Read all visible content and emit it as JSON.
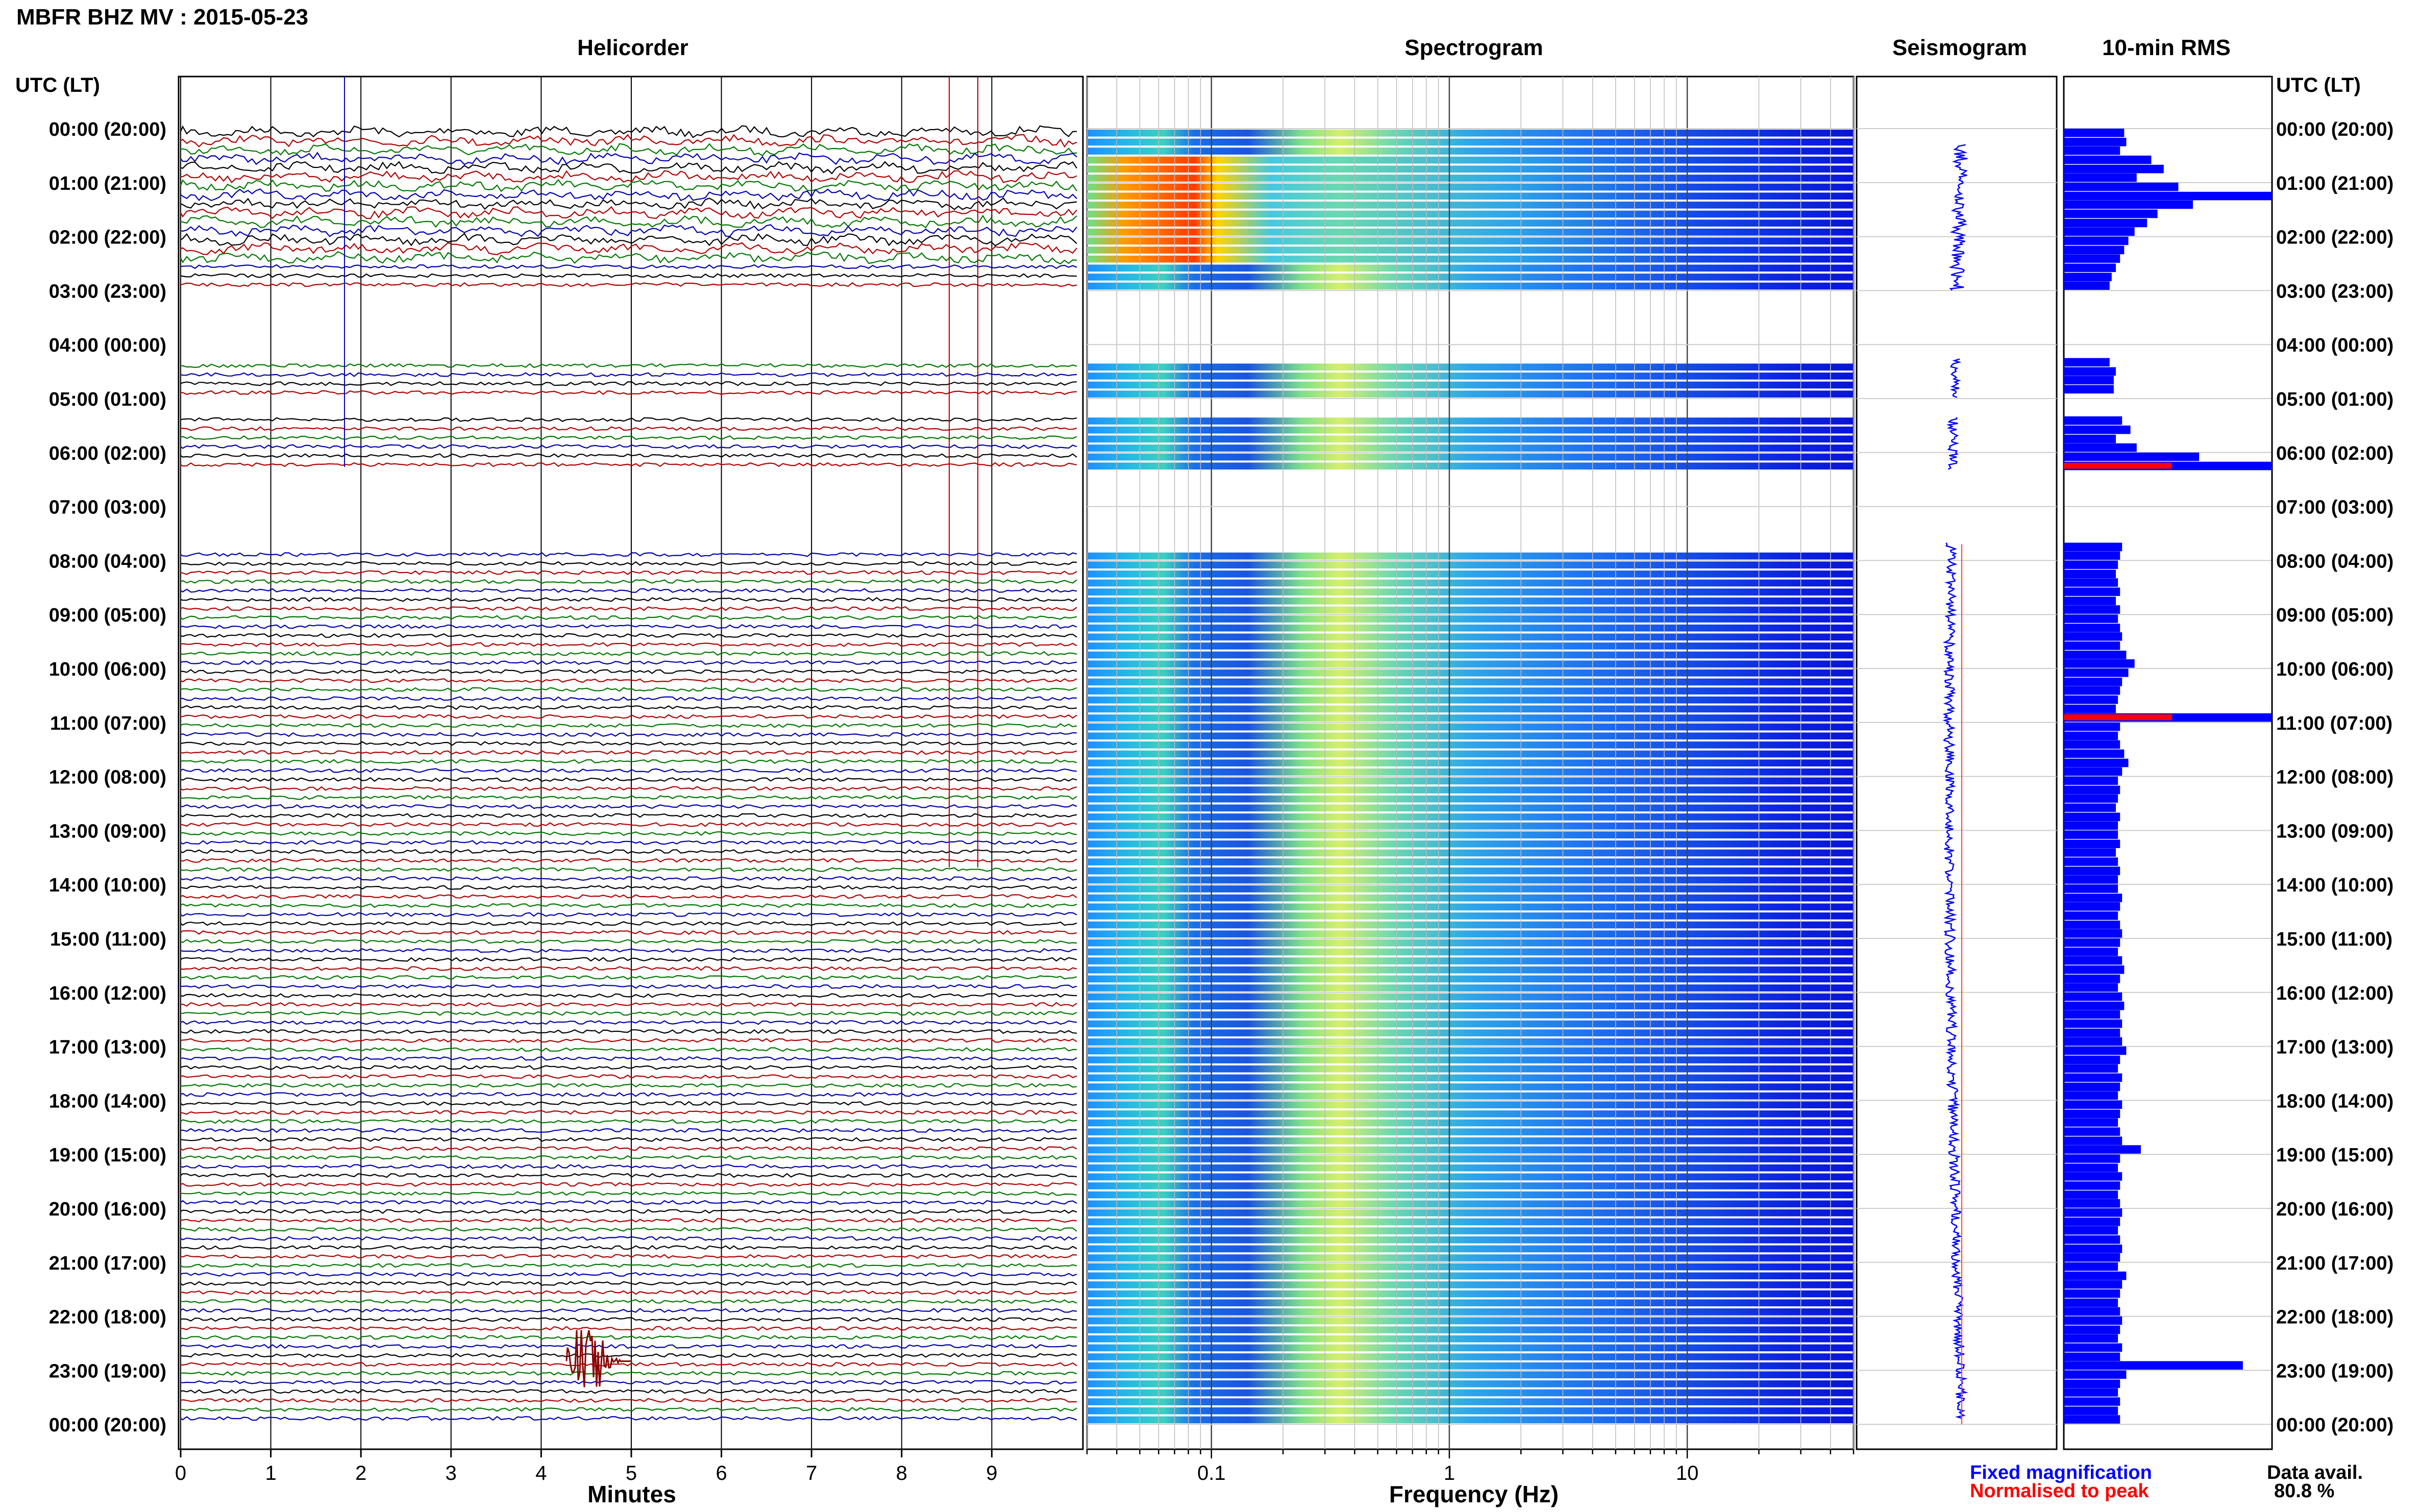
{
  "header": {
    "title": "MBFR BHZ MV : 2015-05-23"
  },
  "panels": {
    "helicorder": "Helicorder",
    "spectrogram": "Spectrogram",
    "seismogram": "Seismogram",
    "rms": "10-min RMS"
  },
  "time_axis": {
    "label": "UTC (LT)",
    "ticks": [
      "00:00 (20:00)",
      "01:00 (21:00)",
      "02:00 (22:00)",
      "03:00 (23:00)",
      "04:00 (00:00)",
      "05:00 (01:00)",
      "06:00 (02:00)",
      "07:00 (03:00)",
      "08:00 (04:00)",
      "09:00 (05:00)",
      "10:00 (06:00)",
      "11:00 (07:00)",
      "12:00 (08:00)",
      "13:00 (09:00)",
      "14:00 (10:00)",
      "15:00 (11:00)",
      "16:00 (12:00)",
      "17:00 (13:00)",
      "18:00 (14:00)",
      "19:00 (15:00)",
      "20:00 (16:00)",
      "21:00 (17:00)",
      "22:00 (18:00)",
      "23:00 (19:00)",
      "00:00 (20:00)"
    ]
  },
  "helicorder_axis": {
    "label": "Minutes",
    "ticks": [
      "0",
      "1",
      "2",
      "3",
      "4",
      "5",
      "6",
      "7",
      "8",
      "9"
    ]
  },
  "spectrogram_axis": {
    "label": "Frequency (Hz)",
    "ticks": [
      "0.1",
      "1",
      "10"
    ]
  },
  "legend": {
    "fixed": "Fixed magnification",
    "normalised": "Normalised to peak"
  },
  "data_avail": {
    "label": "Data avail.",
    "value": "80.8 %"
  },
  "colors": {
    "trace_colors": [
      "#000000",
      "#b00000",
      "#007700",
      "#0000b0"
    ],
    "rms_fill": "#0000ff",
    "rms_peak": "#ff0000",
    "fixed": "#0000ff",
    "normalised": "#ff0000"
  },
  "chart_data": {
    "type": "bar",
    "title": "10-min RMS",
    "x_unit": "hour UTC",
    "gaps_hours": [
      [
        3.0,
        4.0
      ],
      [
        4.0,
        4.25
      ],
      [
        5.0,
        5.33
      ],
      [
        6.33,
        7.67
      ]
    ],
    "rms": [
      {
        "hour": 0.0,
        "value": 0.29
      },
      {
        "hour": 0.17,
        "value": 0.3
      },
      {
        "hour": 0.33,
        "value": 0.27
      },
      {
        "hour": 0.5,
        "value": 0.42
      },
      {
        "hour": 0.67,
        "value": 0.48
      },
      {
        "hour": 0.83,
        "value": 0.35
      },
      {
        "hour": 1.0,
        "value": 0.55
      },
      {
        "hour": 1.17,
        "value": 1.0
      },
      {
        "hour": 1.33,
        "value": 0.62
      },
      {
        "hour": 1.5,
        "value": 0.45
      },
      {
        "hour": 1.67,
        "value": 0.4
      },
      {
        "hour": 1.83,
        "value": 0.34
      },
      {
        "hour": 2.0,
        "value": 0.31
      },
      {
        "hour": 2.17,
        "value": 0.29
      },
      {
        "hour": 2.33,
        "value": 0.27
      },
      {
        "hour": 2.5,
        "value": 0.25
      },
      {
        "hour": 2.67,
        "value": 0.23
      },
      {
        "hour": 2.83,
        "value": 0.22
      },
      {
        "hour": 4.25,
        "value": 0.22
      },
      {
        "hour": 4.42,
        "value": 0.25
      },
      {
        "hour": 4.58,
        "value": 0.24
      },
      {
        "hour": 4.75,
        "value": 0.24
      },
      {
        "hour": 5.33,
        "value": 0.28
      },
      {
        "hour": 5.5,
        "value": 0.32
      },
      {
        "hour": 5.67,
        "value": 0.25
      },
      {
        "hour": 5.83,
        "value": 0.35
      },
      {
        "hour": 6.0,
        "value": 0.65
      },
      {
        "hour": 6.17,
        "value": 1.0,
        "peak": true
      },
      {
        "hour": 7.67,
        "value": 0.28
      },
      {
        "hour": 7.83,
        "value": 0.27
      },
      {
        "hour": 8.0,
        "value": 0.26
      },
      {
        "hour": 8.17,
        "value": 0.25
      },
      {
        "hour": 8.33,
        "value": 0.26
      },
      {
        "hour": 8.5,
        "value": 0.27
      },
      {
        "hour": 8.67,
        "value": 0.25
      },
      {
        "hour": 8.83,
        "value": 0.27
      },
      {
        "hour": 9.0,
        "value": 0.26
      },
      {
        "hour": 9.17,
        "value": 0.27
      },
      {
        "hour": 9.33,
        "value": 0.28
      },
      {
        "hour": 9.5,
        "value": 0.27
      },
      {
        "hour": 9.67,
        "value": 0.3
      },
      {
        "hour": 9.83,
        "value": 0.34
      },
      {
        "hour": 10.0,
        "value": 0.31
      },
      {
        "hour": 10.17,
        "value": 0.28
      },
      {
        "hour": 10.33,
        "value": 0.27
      },
      {
        "hour": 10.5,
        "value": 0.26
      },
      {
        "hour": 10.67,
        "value": 0.25
      },
      {
        "hour": 10.83,
        "value": 1.0,
        "peak": true
      },
      {
        "hour": 11.0,
        "value": 0.27
      },
      {
        "hour": 11.17,
        "value": 0.26
      },
      {
        "hour": 11.33,
        "value": 0.27
      },
      {
        "hour": 11.5,
        "value": 0.29
      },
      {
        "hour": 11.67,
        "value": 0.31
      },
      {
        "hour": 11.83,
        "value": 0.28
      },
      {
        "hour": 12.0,
        "value": 0.26
      },
      {
        "hour": 12.17,
        "value": 0.27
      },
      {
        "hour": 12.33,
        "value": 0.26
      },
      {
        "hour": 12.5,
        "value": 0.25
      },
      {
        "hour": 12.67,
        "value": 0.27
      },
      {
        "hour": 12.83,
        "value": 0.26
      },
      {
        "hour": 13.0,
        "value": 0.26
      },
      {
        "hour": 13.17,
        "value": 0.27
      },
      {
        "hour": 13.33,
        "value": 0.25
      },
      {
        "hour": 13.5,
        "value": 0.26
      },
      {
        "hour": 13.67,
        "value": 0.27
      },
      {
        "hour": 13.83,
        "value": 0.26
      },
      {
        "hour": 14.0,
        "value": 0.26
      },
      {
        "hour": 14.17,
        "value": 0.28
      },
      {
        "hour": 14.33,
        "value": 0.27
      },
      {
        "hour": 14.5,
        "value": 0.26
      },
      {
        "hour": 14.67,
        "value": 0.27
      },
      {
        "hour": 14.83,
        "value": 0.28
      },
      {
        "hour": 15.0,
        "value": 0.27
      },
      {
        "hour": 15.17,
        "value": 0.26
      },
      {
        "hour": 15.33,
        "value": 0.28
      },
      {
        "hour": 15.5,
        "value": 0.29
      },
      {
        "hour": 15.67,
        "value": 0.27
      },
      {
        "hour": 15.83,
        "value": 0.26
      },
      {
        "hour": 16.0,
        "value": 0.28
      },
      {
        "hour": 16.17,
        "value": 0.29
      },
      {
        "hour": 16.33,
        "value": 0.27
      },
      {
        "hour": 16.5,
        "value": 0.28
      },
      {
        "hour": 16.67,
        "value": 0.27
      },
      {
        "hour": 16.83,
        "value": 0.28
      },
      {
        "hour": 17.0,
        "value": 0.3
      },
      {
        "hour": 17.17,
        "value": 0.27
      },
      {
        "hour": 17.33,
        "value": 0.26
      },
      {
        "hour": 17.5,
        "value": 0.28
      },
      {
        "hour": 17.67,
        "value": 0.27
      },
      {
        "hour": 17.83,
        "value": 0.26
      },
      {
        "hour": 18.0,
        "value": 0.28
      },
      {
        "hour": 18.17,
        "value": 0.27
      },
      {
        "hour": 18.33,
        "value": 0.26
      },
      {
        "hour": 18.5,
        "value": 0.27
      },
      {
        "hour": 18.67,
        "value": 0.28
      },
      {
        "hour": 18.83,
        "value": 0.37
      },
      {
        "hour": 19.0,
        "value": 0.27
      },
      {
        "hour": 19.17,
        "value": 0.26
      },
      {
        "hour": 19.33,
        "value": 0.28
      },
      {
        "hour": 19.5,
        "value": 0.27
      },
      {
        "hour": 19.67,
        "value": 0.26
      },
      {
        "hour": 19.83,
        "value": 0.27
      },
      {
        "hour": 20.0,
        "value": 0.28
      },
      {
        "hour": 20.17,
        "value": 0.27
      },
      {
        "hour": 20.33,
        "value": 0.26
      },
      {
        "hour": 20.5,
        "value": 0.27
      },
      {
        "hour": 20.67,
        "value": 0.28
      },
      {
        "hour": 20.83,
        "value": 0.27
      },
      {
        "hour": 21.0,
        "value": 0.26
      },
      {
        "hour": 21.17,
        "value": 0.3
      },
      {
        "hour": 21.33,
        "value": 0.28
      },
      {
        "hour": 21.5,
        "value": 0.27
      },
      {
        "hour": 21.67,
        "value": 0.26
      },
      {
        "hour": 21.83,
        "value": 0.27
      },
      {
        "hour": 22.0,
        "value": 0.28
      },
      {
        "hour": 22.17,
        "value": 0.27
      },
      {
        "hour": 22.33,
        "value": 0.26
      },
      {
        "hour": 22.5,
        "value": 0.28
      },
      {
        "hour": 22.67,
        "value": 0.27
      },
      {
        "hour": 22.83,
        "value": 0.86
      },
      {
        "hour": 23.0,
        "value": 0.3
      },
      {
        "hour": 23.17,
        "value": 0.27
      },
      {
        "hour": 23.33,
        "value": 0.26
      },
      {
        "hour": 23.5,
        "value": 0.27
      },
      {
        "hour": 23.67,
        "value": 0.26
      },
      {
        "hour": 23.83,
        "value": 0.27
      }
    ]
  }
}
